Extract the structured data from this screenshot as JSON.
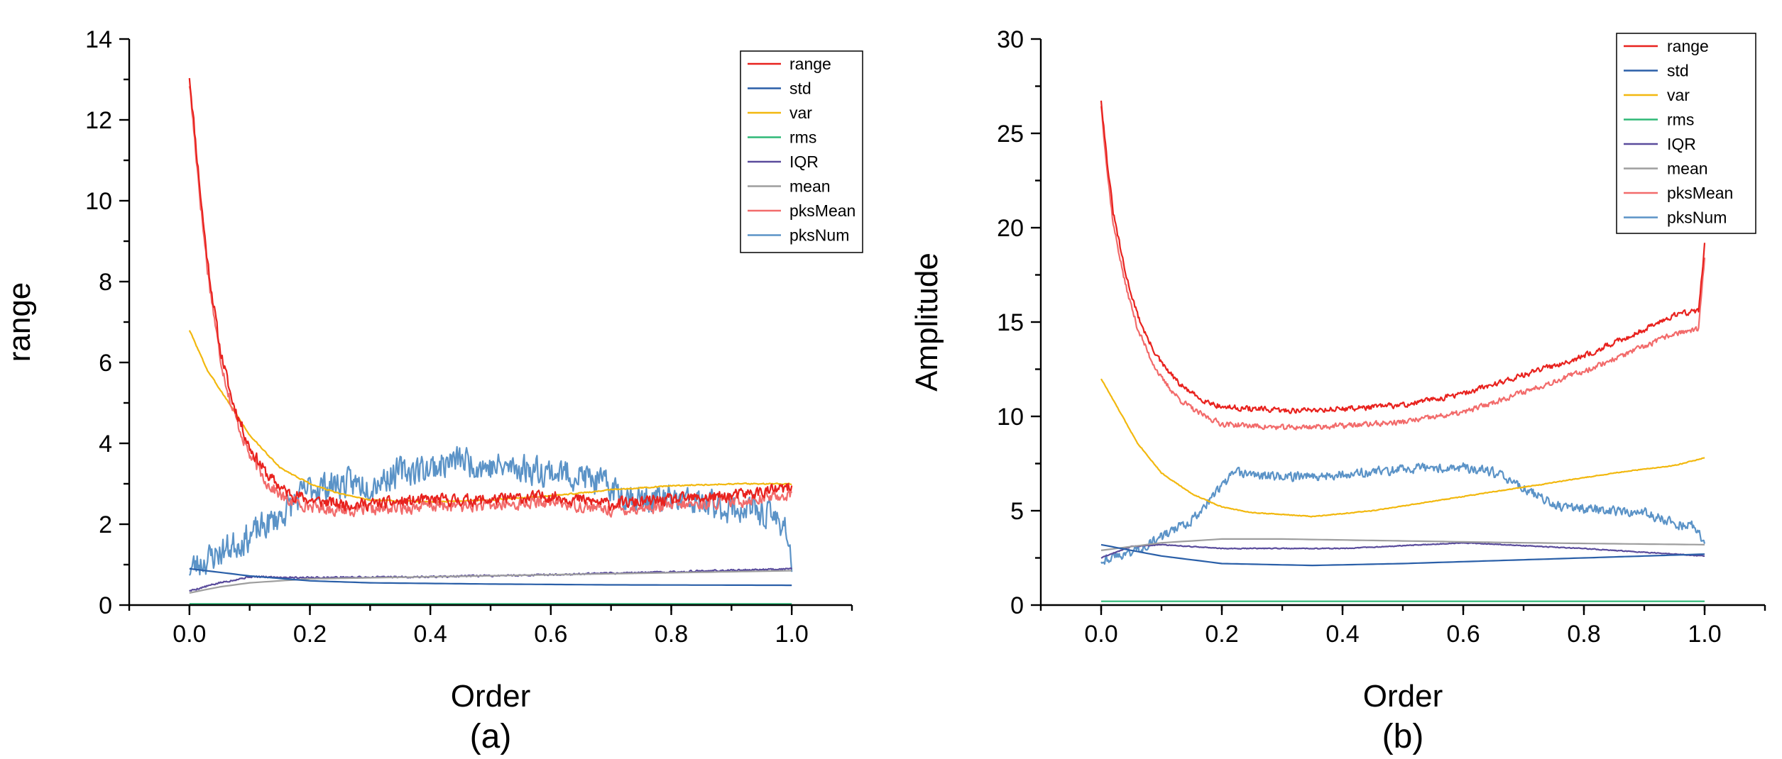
{
  "chart_data": [
    {
      "type": "line",
      "panel_label": "(a)",
      "xlabel": "Order",
      "ylabel": "range",
      "xlim": [
        -0.1,
        1.1
      ],
      "ylim": [
        0,
        14
      ],
      "xticks": [
        0.0,
        0.2,
        0.4,
        0.6,
        0.8,
        1.0
      ],
      "xtick_labels": [
        "0.0",
        "0.2",
        "0.4",
        "0.6",
        "0.8",
        "1.0"
      ],
      "yticks": [
        0,
        2,
        4,
        6,
        8,
        10,
        12,
        14
      ],
      "ytick_labels": [
        "0",
        "2",
        "4",
        "6",
        "8",
        "10",
        "12",
        "14"
      ],
      "legend_position": "top-right",
      "series": [
        {
          "name": "range",
          "color": "#e8221e",
          "x": [
            0,
            0.01,
            0.02,
            0.03,
            0.05,
            0.07,
            0.1,
            0.13,
            0.16,
            0.2,
            0.25,
            0.3,
            0.4,
            0.5,
            0.6,
            0.7,
            0.8,
            0.9,
            1.0
          ],
          "values": [
            13.1,
            11.5,
            9.9,
            8.5,
            6.4,
            5.1,
            3.9,
            3.2,
            2.8,
            2.6,
            2.5,
            2.5,
            2.6,
            2.6,
            2.7,
            2.5,
            2.6,
            2.7,
            2.9
          ],
          "noise": 0.2,
          "seed": 11
        },
        {
          "name": "std",
          "color": "#2a5fa8",
          "x": [
            0,
            0.1,
            0.2,
            0.3,
            0.5,
            0.7,
            1.0
          ],
          "values": [
            0.9,
            0.72,
            0.6,
            0.55,
            0.52,
            0.5,
            0.49
          ],
          "noise": 0.0,
          "seed": 2
        },
        {
          "name": "var",
          "color": "#f2b80f",
          "x": [
            0,
            0.03,
            0.07,
            0.1,
            0.15,
            0.2,
            0.25,
            0.3,
            0.4,
            0.5,
            0.6,
            0.7,
            0.8,
            0.9,
            1.0
          ],
          "values": [
            6.8,
            5.8,
            4.9,
            4.2,
            3.4,
            3.0,
            2.75,
            2.6,
            2.55,
            2.6,
            2.7,
            2.85,
            2.95,
            3.0,
            3.0
          ],
          "noise": 0.02,
          "seed": 3
        },
        {
          "name": "rms",
          "color": "#2eb877",
          "x": [
            0,
            1.0
          ],
          "values": [
            0.03,
            0.03
          ],
          "noise": 0.0,
          "seed": 4
        },
        {
          "name": "IQR",
          "color": "#5a4c9c",
          "x": [
            0,
            0.05,
            0.1,
            0.2,
            0.4,
            0.6,
            0.8,
            1.0
          ],
          "values": [
            0.35,
            0.55,
            0.7,
            0.68,
            0.7,
            0.75,
            0.82,
            0.9
          ],
          "noise": 0.03,
          "seed": 5
        },
        {
          "name": "mean",
          "color": "#9e9e9e",
          "x": [
            0,
            0.05,
            0.1,
            0.2,
            0.4,
            0.6,
            0.8,
            1.0
          ],
          "values": [
            0.3,
            0.45,
            0.55,
            0.65,
            0.7,
            0.75,
            0.8,
            0.85
          ],
          "noise": 0.0,
          "seed": 6
        },
        {
          "name": "pksMean",
          "color": "#f26b6b",
          "x": [
            0,
            0.01,
            0.02,
            0.03,
            0.05,
            0.07,
            0.1,
            0.13,
            0.16,
            0.2,
            0.25,
            0.3,
            0.4,
            0.5,
            0.6,
            0.7,
            0.8,
            0.9,
            1.0
          ],
          "values": [
            12.9,
            11.3,
            9.7,
            8.3,
            6.2,
            4.9,
            3.7,
            3.0,
            2.6,
            2.45,
            2.35,
            2.35,
            2.45,
            2.45,
            2.55,
            2.35,
            2.45,
            2.55,
            2.75
          ],
          "noise": 0.2,
          "seed": 17
        },
        {
          "name": "pksNum",
          "color": "#5b93c7",
          "x": [
            0,
            0.05,
            0.1,
            0.15,
            0.2,
            0.25,
            0.3,
            0.35,
            0.4,
            0.45,
            0.5,
            0.55,
            0.6,
            0.65,
            0.7,
            0.75,
            0.8,
            0.85,
            0.9,
            0.95,
            0.99,
            1.0
          ],
          "values": [
            0.9,
            1.3,
            1.7,
            2.2,
            2.9,
            3.0,
            3.0,
            3.3,
            3.4,
            3.6,
            3.4,
            3.4,
            3.3,
            3.2,
            2.9,
            2.6,
            2.6,
            2.5,
            2.4,
            2.3,
            2.0,
            1.0
          ],
          "noise": 0.5,
          "seed": 23
        }
      ]
    },
    {
      "type": "line",
      "panel_label": "(b)",
      "xlabel": "Order",
      "ylabel": "Amplitude",
      "xlim": [
        -0.1,
        1.1
      ],
      "ylim": [
        0,
        30
      ],
      "xticks": [
        0.0,
        0.2,
        0.4,
        0.6,
        0.8,
        1.0
      ],
      "xtick_labels": [
        "0.0",
        "0.2",
        "0.4",
        "0.6",
        "0.8",
        "1.0"
      ],
      "yticks": [
        0,
        5,
        10,
        15,
        20,
        25,
        30
      ],
      "ytick_labels": [
        "0",
        "5",
        "10",
        "15",
        "20",
        "25",
        "30"
      ],
      "legend_position": "top-right",
      "series": [
        {
          "name": "range",
          "color": "#e8221e",
          "x": [
            0,
            0.01,
            0.02,
            0.04,
            0.06,
            0.08,
            0.1,
            0.13,
            0.16,
            0.2,
            0.3,
            0.4,
            0.5,
            0.6,
            0.7,
            0.8,
            0.9,
            0.95,
            0.99,
            1.0
          ],
          "values": [
            26.8,
            23.5,
            20.8,
            17.6,
            15.4,
            13.9,
            12.8,
            11.7,
            11.0,
            10.5,
            10.3,
            10.4,
            10.6,
            11.2,
            12.2,
            13.2,
            14.6,
            15.4,
            15.6,
            19.1
          ],
          "noise": 0.2,
          "seed": 31
        },
        {
          "name": "std",
          "color": "#2a5fa8",
          "x": [
            0,
            0.1,
            0.2,
            0.35,
            0.5,
            0.7,
            0.9,
            1.0
          ],
          "values": [
            3.2,
            2.6,
            2.2,
            2.1,
            2.2,
            2.4,
            2.6,
            2.7
          ],
          "noise": 0.0,
          "seed": 32
        },
        {
          "name": "var",
          "color": "#f2b80f",
          "x": [
            0,
            0.03,
            0.06,
            0.1,
            0.15,
            0.2,
            0.25,
            0.3,
            0.35,
            0.45,
            0.55,
            0.65,
            0.75,
            0.85,
            0.95,
            1.0
          ],
          "values": [
            12.0,
            10.3,
            8.6,
            7.0,
            5.9,
            5.2,
            4.9,
            4.8,
            4.7,
            5.0,
            5.5,
            6.0,
            6.5,
            7.0,
            7.4,
            7.8
          ],
          "noise": 0.03,
          "seed": 33
        },
        {
          "name": "rms",
          "color": "#2eb877",
          "x": [
            0,
            1.0
          ],
          "values": [
            0.2,
            0.2
          ],
          "noise": 0.0,
          "seed": 34
        },
        {
          "name": "IQR",
          "color": "#5a4c9c",
          "x": [
            0,
            0.05,
            0.1,
            0.2,
            0.4,
            0.6,
            0.8,
            1.0
          ],
          "values": [
            2.5,
            3.1,
            3.2,
            3.0,
            3.0,
            3.3,
            3.0,
            2.6
          ],
          "noise": 0.03,
          "seed": 35
        },
        {
          "name": "mean",
          "color": "#9e9e9e",
          "x": [
            0,
            0.05,
            0.1,
            0.2,
            0.3,
            0.5,
            0.7,
            1.0
          ],
          "values": [
            2.9,
            3.1,
            3.3,
            3.5,
            3.5,
            3.4,
            3.3,
            3.2
          ],
          "noise": 0.0,
          "seed": 36
        },
        {
          "name": "pksMean",
          "color": "#f26b6b",
          "x": [
            0,
            0.01,
            0.02,
            0.04,
            0.06,
            0.08,
            0.1,
            0.13,
            0.16,
            0.2,
            0.3,
            0.4,
            0.5,
            0.6,
            0.7,
            0.8,
            0.9,
            0.95,
            0.99,
            1.0
          ],
          "values": [
            26.5,
            23.0,
            20.2,
            17.0,
            14.7,
            13.2,
            12.0,
            10.9,
            10.2,
            9.6,
            9.4,
            9.5,
            9.7,
            10.2,
            11.3,
            12.4,
            13.7,
            14.4,
            14.6,
            18.4
          ],
          "noise": 0.2,
          "seed": 37
        },
        {
          "name": "pksNum",
          "color": "#5b93c7",
          "x": [
            0,
            0.05,
            0.1,
            0.15,
            0.2,
            0.22,
            0.3,
            0.4,
            0.5,
            0.6,
            0.65,
            0.7,
            0.75,
            0.8,
            0.85,
            0.9,
            0.95,
            0.98,
            1.0
          ],
          "values": [
            2.4,
            2.8,
            3.6,
            4.5,
            6.3,
            7.0,
            6.8,
            6.9,
            7.2,
            7.3,
            7.0,
            6.2,
            5.3,
            5.1,
            5.0,
            4.9,
            4.3,
            4.2,
            3.3
          ],
          "noise": 0.35,
          "seed": 43
        }
      ]
    }
  ]
}
